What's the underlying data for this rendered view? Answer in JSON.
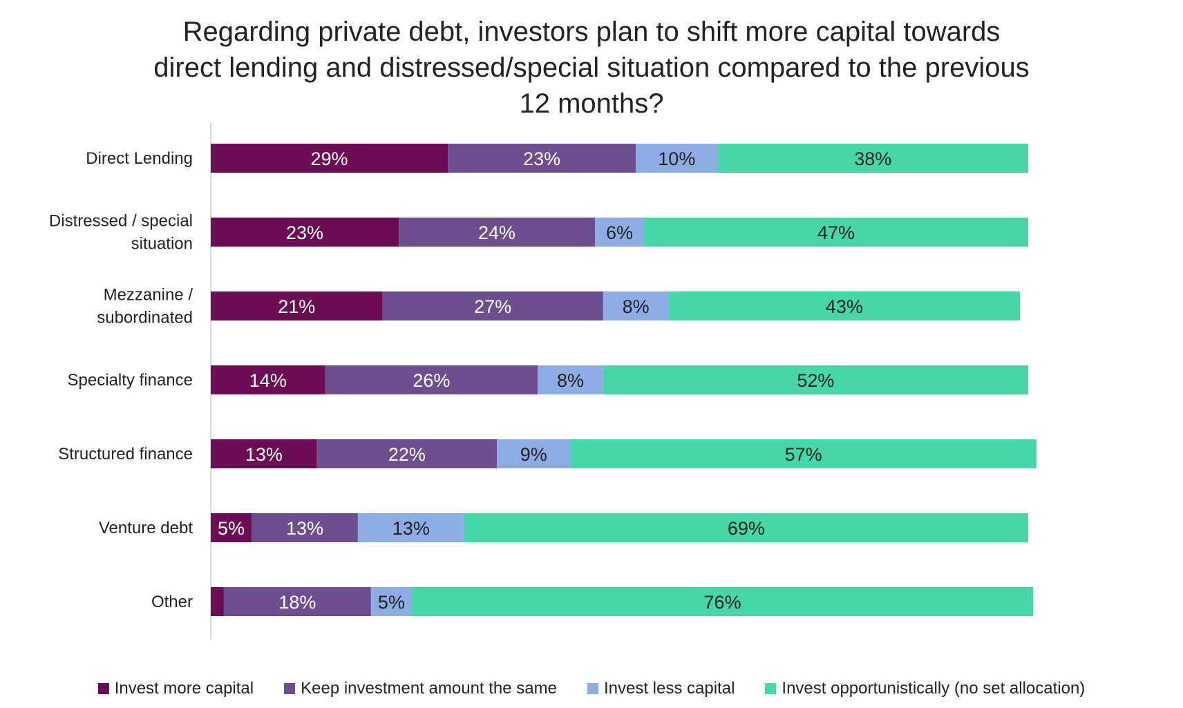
{
  "chart_data": {
    "type": "bar",
    "orientation": "horizontal",
    "stacked": true,
    "title": "Regarding private debt, investors plan to shift more capital towards\ndirect lending and distressed/special situation compared to the previous\n12 months?",
    "xlabel": "",
    "ylabel": "",
    "xlim": [
      0,
      100
    ],
    "grid": false,
    "legend_position": "bottom",
    "categories": [
      "Direct Lending",
      "Distressed / special\nsituation",
      "Mezzanine /\nsubordinated",
      "Specialty finance",
      "Structured finance",
      "Venture debt",
      "Other"
    ],
    "series": [
      {
        "name": "Invest more capital",
        "color": "#6B0E55",
        "label_color": "#FFFFFF",
        "values": [
          29,
          23,
          21,
          14,
          13,
          5,
          1.6
        ],
        "labels": [
          "29%",
          "23%",
          "21%",
          "14%",
          "13%",
          "5%",
          ""
        ]
      },
      {
        "name": "Keep investment amount the same",
        "color": "#6D4F8F",
        "label_color": "#FFFFFF",
        "values": [
          23,
          24,
          27,
          26,
          22,
          13,
          18
        ],
        "labels": [
          "23%",
          "24%",
          "27%",
          "26%",
          "22%",
          "13%",
          "18%"
        ]
      },
      {
        "name": "Invest less capital",
        "color": "#8DACE3",
        "label_color": "#222222",
        "values": [
          10,
          6,
          8,
          8,
          9,
          13,
          5
        ],
        "labels": [
          "10%",
          "6%",
          "8%",
          "8%",
          "9%",
          "13%",
          "5%"
        ]
      },
      {
        "name": "Invest opportunistically (no set allocation)",
        "color": "#46D6AA",
        "label_color": "#222222",
        "values": [
          38,
          47,
          43,
          52,
          57,
          69,
          76
        ],
        "labels": [
          "38%",
          "47%",
          "43%",
          "52%",
          "57%",
          "69%",
          "76%"
        ]
      }
    ]
  }
}
